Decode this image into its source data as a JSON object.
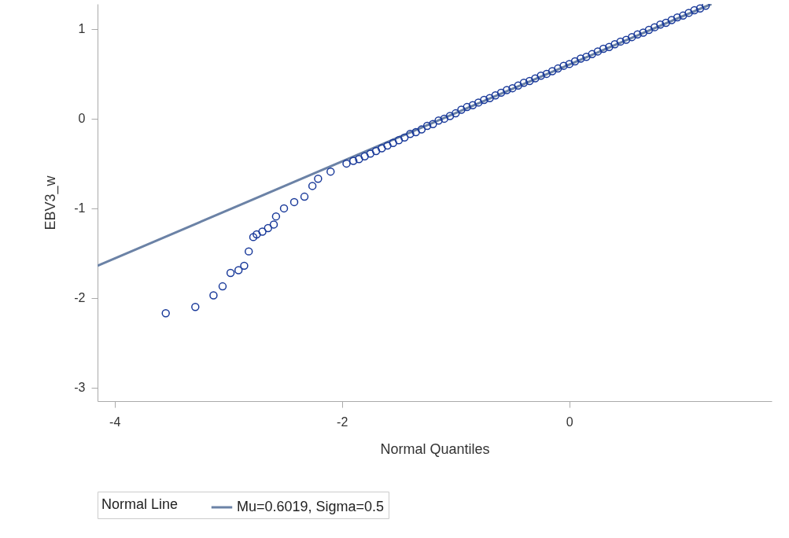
{
  "chart_data": {
    "type": "scatter",
    "xlabel": "Normal Quantiles",
    "ylabel": "EBV3_w",
    "legend_title": "Normal Line",
    "legend": "bottom",
    "grid": false,
    "marker": "circle",
    "xlim": [
      -4.15,
      1.78
    ],
    "ylim": [
      -3.15,
      1.28
    ],
    "xticks": [
      -4,
      -2,
      0
    ],
    "yticks": [
      -3,
      -2,
      -1,
      0,
      1
    ],
    "series": [
      {
        "type": "line",
        "name": "Mu=0.6019, Sigma=0.5",
        "color": "#6b82a6",
        "line_style": "solid",
        "marker": "none",
        "x": [
          -4.15,
          1.25
        ],
        "values": [
          -1.64,
          1.28
        ]
      },
      {
        "color": "#1a3a9a",
        "x": [
          -3.55,
          -3.29,
          -3.13,
          -3.05,
          -2.98,
          -2.91,
          -2.86,
          -2.82,
          -2.78,
          -2.75,
          -2.7,
          -2.65,
          -2.6,
          -2.58,
          -2.51,
          -2.42,
          -2.33,
          -2.26,
          -2.21,
          -2.1,
          -1.96,
          -1.9,
          -1.85,
          -1.8,
          -1.75,
          -1.7,
          -1.65,
          -1.6,
          -1.55,
          -1.5,
          -1.45,
          -1.4,
          -1.35,
          -1.3,
          -1.25,
          -1.2,
          -1.15,
          -1.1,
          -1.05,
          -1.0,
          -0.95,
          -0.9,
          -0.85,
          -0.8,
          -0.75,
          -0.7,
          -0.65,
          -0.6,
          -0.55,
          -0.5,
          -0.45,
          -0.4,
          -0.35,
          -0.3,
          -0.25,
          -0.2,
          -0.15,
          -0.1,
          -0.05,
          0.0,
          0.05,
          0.1,
          0.15,
          0.2,
          0.25,
          0.3,
          0.35,
          0.4,
          0.45,
          0.5,
          0.55,
          0.6,
          0.65,
          0.7,
          0.75,
          0.8,
          0.85,
          0.9,
          0.95,
          1.0,
          1.05,
          1.1,
          1.15,
          1.2
        ],
        "values": [
          -2.17,
          -2.1,
          -1.97,
          -1.87,
          -1.72,
          -1.69,
          -1.64,
          -1.48,
          -1.32,
          -1.29,
          -1.26,
          -1.22,
          -1.18,
          -1.09,
          -1.0,
          -0.93,
          -0.87,
          -0.75,
          -0.67,
          -0.59,
          -0.5,
          -0.47,
          -0.45,
          -0.42,
          -0.39,
          -0.36,
          -0.33,
          -0.3,
          -0.27,
          -0.24,
          -0.21,
          -0.17,
          -0.15,
          -0.12,
          -0.08,
          -0.06,
          -0.02,
          0.0,
          0.03,
          0.06,
          0.1,
          0.13,
          0.15,
          0.18,
          0.21,
          0.23,
          0.26,
          0.29,
          0.32,
          0.34,
          0.37,
          0.4,
          0.42,
          0.45,
          0.48,
          0.5,
          0.53,
          0.56,
          0.59,
          0.61,
          0.64,
          0.67,
          0.69,
          0.72,
          0.75,
          0.78,
          0.8,
          0.83,
          0.86,
          0.88,
          0.91,
          0.94,
          0.96,
          0.99,
          1.02,
          1.05,
          1.07,
          1.1,
          1.13,
          1.15,
          1.18,
          1.21,
          1.23,
          1.26
        ]
      }
    ]
  }
}
